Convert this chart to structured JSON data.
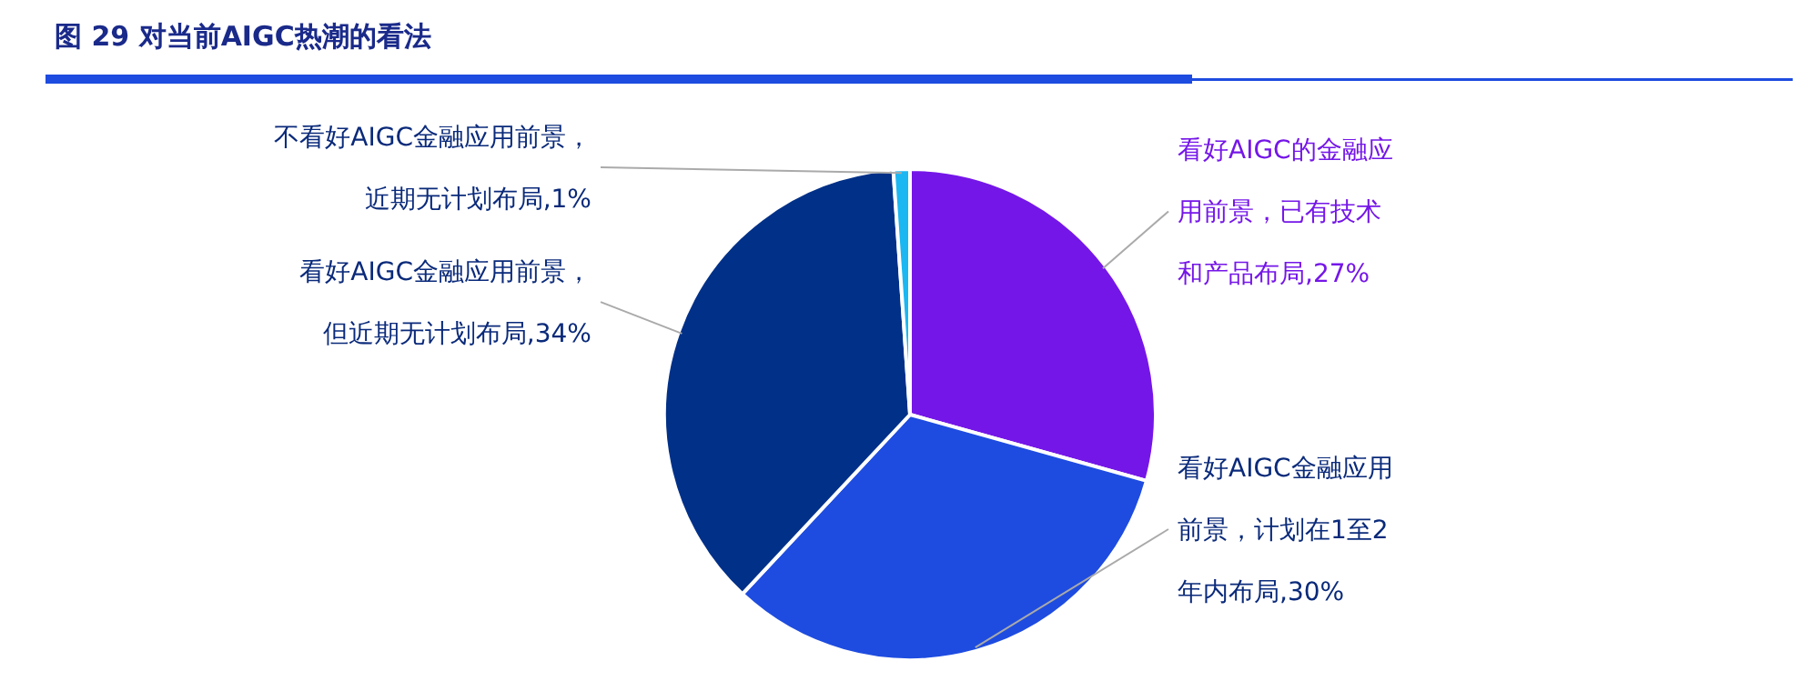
{
  "chart_data": {
    "type": "pie",
    "title": "图 29 对当前AIGC热潮的看法",
    "categories": [
      "看好AIGC的金融应用前景，已有技术和产品布局",
      "看好AIGC金融应用前景，计划在1至2年内布局",
      "看好AIGC金融应用前景，但近期无计划布局",
      "不看好AIGC金融应用前景，近期无计划布局"
    ],
    "values": [
      27,
      30,
      34,
      1
    ],
    "value_labels": [
      ",27%",
      ",30%",
      ",34%",
      ",1%"
    ],
    "colors": [
      "#7516e8",
      "#1e4ce0",
      "#003088",
      "#1bb7f2"
    ]
  }
}
